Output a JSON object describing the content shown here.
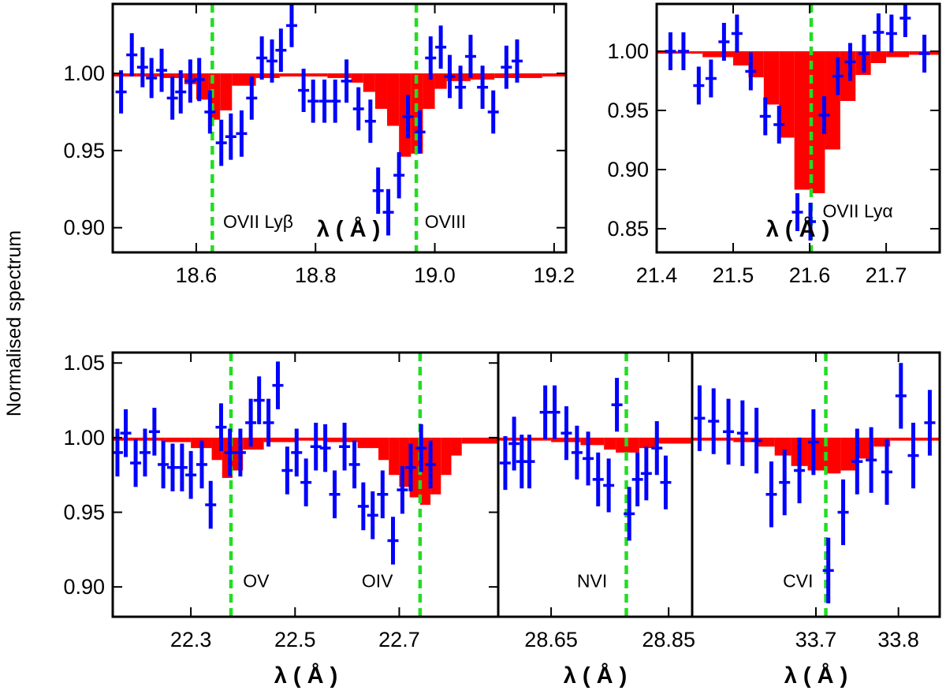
{
  "figure": {
    "ylabel": "Normalised spectrum",
    "colors": {
      "model": "#ff0000",
      "data": "#0000ff",
      "lines": "#22dd22",
      "frame": "#000000"
    }
  },
  "chart_data": [
    {
      "type": "step+errorbar",
      "xlabel": "λ ( Å )",
      "xlim": [
        18.46,
        19.22
      ],
      "ylim": [
        0.884,
        1.045
      ],
      "xticks": [
        "18.6",
        "18.8",
        "19.0",
        "19.2"
      ],
      "yticks": [
        "0.90",
        "0.95",
        "1.00"
      ],
      "line_markers": [
        18.627,
        18.969
      ],
      "annotations": [
        {
          "text": "OVII  Lyβ",
          "x": 18.645,
          "y": 0.904
        },
        {
          "text": "OVIII",
          "x": 18.983,
          "y": 0.904
        }
      ],
      "model": {
        "bins": [
          18.46,
          18.5,
          18.54,
          18.58,
          18.6,
          18.62,
          18.64,
          18.66,
          18.7,
          18.74,
          18.78,
          18.82,
          18.86,
          18.88,
          18.9,
          18.92,
          18.94,
          18.96,
          18.98,
          19.0,
          19.02,
          19.06,
          19.1,
          19.14,
          19.18,
          19.22
        ],
        "values": [
          0.998,
          0.998,
          0.997,
          0.993,
          0.983,
          0.97,
          0.976,
          0.992,
          0.997,
          0.998,
          0.998,
          0.997,
          0.994,
          0.988,
          0.977,
          0.966,
          0.946,
          0.948,
          0.977,
          0.99,
          0.995,
          0.996,
          0.997,
          0.997,
          0.998
        ]
      },
      "data": [
        [
          18.474,
          0.988,
          0.014
        ],
        [
          18.492,
          1.012,
          0.014
        ],
        [
          18.51,
          1.004,
          0.013
        ],
        [
          18.525,
          0.997,
          0.013
        ],
        [
          18.542,
          1.002,
          0.014
        ],
        [
          18.56,
          0.984,
          0.014
        ],
        [
          18.574,
          0.988,
          0.014
        ],
        [
          18.59,
          0.995,
          0.014
        ],
        [
          18.605,
          0.996,
          0.014
        ],
        [
          18.623,
          0.975,
          0.014
        ],
        [
          18.642,
          0.955,
          0.015
        ],
        [
          18.658,
          0.959,
          0.015
        ],
        [
          18.676,
          0.961,
          0.015
        ],
        [
          18.693,
          0.984,
          0.014
        ],
        [
          18.71,
          1.01,
          0.014
        ],
        [
          18.727,
          1.008,
          0.014
        ],
        [
          18.742,
          1.015,
          0.014
        ],
        [
          18.76,
          1.031,
          0.014
        ],
        [
          18.78,
          0.989,
          0.014
        ],
        [
          18.796,
          0.982,
          0.014
        ],
        [
          18.815,
          0.982,
          0.014
        ],
        [
          18.833,
          0.982,
          0.014
        ],
        [
          18.852,
          0.995,
          0.014
        ],
        [
          18.872,
          0.977,
          0.014
        ],
        [
          18.892,
          0.969,
          0.014
        ],
        [
          18.905,
          0.924,
          0.015
        ],
        [
          18.922,
          0.91,
          0.015
        ],
        [
          18.94,
          0.934,
          0.015
        ],
        [
          18.955,
          0.972,
          0.014
        ],
        [
          18.975,
          0.962,
          0.014
        ],
        [
          18.993,
          1.01,
          0.014
        ],
        [
          19.01,
          1.017,
          0.014
        ],
        [
          19.025,
          0.998,
          0.014
        ],
        [
          19.043,
          0.991,
          0.014
        ],
        [
          19.06,
          1.011,
          0.014
        ],
        [
          19.08,
          0.991,
          0.014
        ],
        [
          19.098,
          0.975,
          0.014
        ],
        [
          19.12,
          1.004,
          0.014
        ],
        [
          19.138,
          1.008,
          0.014
        ]
      ]
    },
    {
      "type": "step+errorbar",
      "xlabel": "λ ( Å )",
      "xlim": [
        21.4,
        21.77
      ],
      "ylim": [
        0.83,
        1.04
      ],
      "xticks": [
        "21.4",
        "21.5",
        "21.6",
        "21.7"
      ],
      "yticks": [
        "0.85",
        "0.90",
        "0.95",
        "1.00"
      ],
      "line_markers": [
        21.602
      ],
      "annotations": [
        {
          "text": "OVII  Lyα",
          "x": 21.617,
          "y": 0.865
        }
      ],
      "model": {
        "bins": [
          21.4,
          21.46,
          21.5,
          21.52,
          21.54,
          21.56,
          21.58,
          21.6,
          21.62,
          21.64,
          21.66,
          21.68,
          21.7,
          21.73,
          21.77
        ],
        "values": [
          0.998,
          0.995,
          0.988,
          0.978,
          0.955,
          0.927,
          0.883,
          0.88,
          0.917,
          0.958,
          0.98,
          0.99,
          0.995,
          0.997
        ]
      },
      "data": [
        [
          21.418,
          1.0,
          0.016
        ],
        [
          21.435,
          1.0,
          0.016
        ],
        [
          21.455,
          0.971,
          0.016
        ],
        [
          21.471,
          0.977,
          0.016
        ],
        [
          21.488,
          1.008,
          0.016
        ],
        [
          21.505,
          1.015,
          0.016
        ],
        [
          21.523,
          0.983,
          0.016
        ],
        [
          21.542,
          0.945,
          0.016
        ],
        [
          21.56,
          0.938,
          0.016
        ],
        [
          21.584,
          0.864,
          0.016
        ],
        [
          21.601,
          0.856,
          0.016
        ],
        [
          21.619,
          0.946,
          0.016
        ],
        [
          21.637,
          0.979,
          0.016
        ],
        [
          21.653,
          0.991,
          0.016
        ],
        [
          21.671,
          0.998,
          0.016
        ],
        [
          21.69,
          1.016,
          0.016
        ],
        [
          21.707,
          1.015,
          0.016
        ],
        [
          21.725,
          1.028,
          0.016
        ],
        [
          21.75,
          0.998,
          0.016
        ]
      ]
    },
    {
      "type": "step+errorbar",
      "xlabel": "λ ( Å )",
      "xlim": [
        22.15,
        22.89
      ],
      "ylim": [
        0.88,
        1.057
      ],
      "xticks": [
        "22.3",
        "22.5",
        "22.7"
      ],
      "yticks": [
        "0.90",
        "0.95",
        "1.00",
        "1.05"
      ],
      "line_markers": [
        22.377,
        22.74
      ],
      "annotations": [
        {
          "text": "OV",
          "x": 22.4,
          "y": 0.904
        },
        {
          "text": "OIV",
          "x": 22.628,
          "y": 0.904
        }
      ],
      "model": {
        "bins": [
          22.15,
          22.2,
          22.25,
          22.3,
          22.34,
          22.36,
          22.38,
          22.4,
          22.44,
          22.5,
          22.56,
          22.62,
          22.66,
          22.68,
          22.7,
          22.72,
          22.74,
          22.76,
          22.78,
          22.8,
          22.82,
          22.89
        ],
        "values": [
          0.998,
          0.998,
          0.997,
          0.993,
          0.985,
          0.973,
          0.978,
          0.992,
          0.997,
          0.998,
          0.997,
          0.993,
          0.985,
          0.975,
          0.967,
          0.96,
          0.955,
          0.962,
          0.975,
          0.988,
          0.996
        ]
      },
      "data": [
        [
          22.159,
          0.99,
          0.016
        ],
        [
          22.175,
          1.003,
          0.016
        ],
        [
          22.194,
          0.983,
          0.016
        ],
        [
          22.212,
          0.99,
          0.016
        ],
        [
          22.23,
          1.004,
          0.016
        ],
        [
          22.247,
          0.982,
          0.016
        ],
        [
          22.265,
          0.98,
          0.016
        ],
        [
          22.283,
          0.98,
          0.016
        ],
        [
          22.3,
          0.975,
          0.016
        ],
        [
          22.321,
          0.982,
          0.016
        ],
        [
          22.338,
          0.955,
          0.016
        ],
        [
          22.358,
          1.007,
          0.016
        ],
        [
          22.375,
          0.99,
          0.016
        ],
        [
          22.395,
          0.99,
          0.016
        ],
        [
          22.415,
          1.01,
          0.016
        ],
        [
          22.431,
          1.025,
          0.016
        ],
        [
          22.449,
          1.01,
          0.016
        ],
        [
          22.467,
          1.035,
          0.016
        ],
        [
          22.485,
          0.978,
          0.016
        ],
        [
          22.503,
          0.99,
          0.016
        ],
        [
          22.521,
          0.97,
          0.016
        ],
        [
          22.54,
          0.994,
          0.016
        ],
        [
          22.558,
          0.993,
          0.016
        ],
        [
          22.576,
          0.962,
          0.016
        ],
        [
          22.595,
          0.994,
          0.016
        ],
        [
          22.614,
          0.982,
          0.016
        ],
        [
          22.631,
          0.954,
          0.016
        ],
        [
          22.649,
          0.948,
          0.016
        ],
        [
          22.668,
          0.962,
          0.016
        ],
        [
          22.688,
          0.931,
          0.016
        ],
        [
          22.706,
          0.965,
          0.016
        ],
        [
          22.722,
          0.98,
          0.016
        ],
        [
          22.742,
          0.993,
          0.016
        ],
        [
          22.76,
          0.982,
          0.016
        ]
      ]
    },
    {
      "type": "step+errorbar",
      "xlabel": "λ ( Å )",
      "xlim": [
        28.56,
        28.89
      ],
      "ylim": [
        0.88,
        1.057
      ],
      "xticks": [
        "28.65",
        "28.85"
      ],
      "yticks": [],
      "line_markers": [
        28.778
      ],
      "annotations": [
        {
          "text": "NVI",
          "x": 28.694,
          "y": 0.904
        }
      ],
      "model": {
        "bins": [
          28.56,
          28.65,
          28.7,
          28.74,
          28.76,
          28.8,
          28.83,
          28.89
        ],
        "values": [
          0.998,
          0.997,
          0.995,
          0.992,
          0.99,
          0.993,
          0.996
        ]
      },
      "data": [
        [
          28.572,
          0.983,
          0.018
        ],
        [
          28.587,
          0.996,
          0.018
        ],
        [
          28.6,
          0.984,
          0.018
        ],
        [
          28.613,
          0.984,
          0.018
        ],
        [
          28.64,
          1.017,
          0.018
        ],
        [
          28.656,
          1.017,
          0.018
        ],
        [
          28.676,
          1.003,
          0.018
        ],
        [
          28.694,
          0.99,
          0.018
        ],
        [
          28.713,
          0.986,
          0.018
        ],
        [
          28.73,
          0.972,
          0.018
        ],
        [
          28.748,
          0.968,
          0.018
        ],
        [
          28.762,
          1.022,
          0.018
        ],
        [
          28.783,
          0.949,
          0.018
        ],
        [
          28.797,
          0.972,
          0.018
        ],
        [
          28.812,
          0.976,
          0.018
        ],
        [
          28.83,
          0.993,
          0.018
        ],
        [
          28.845,
          0.97,
          0.018
        ]
      ]
    },
    {
      "type": "step+errorbar",
      "xlabel": "λ ( Å )",
      "xlim": [
        33.55,
        33.85
      ],
      "ylim": [
        0.88,
        1.057
      ],
      "xticks": [
        "33.7",
        "33.8"
      ],
      "yticks": [],
      "line_markers": [
        33.712
      ],
      "annotations": [
        {
          "text": "CVI",
          "x": 33.66,
          "y": 0.904
        }
      ],
      "model": {
        "bins": [
          33.55,
          33.6,
          33.63,
          33.65,
          33.67,
          33.69,
          33.71,
          33.73,
          33.75,
          33.77,
          33.79,
          33.85
        ],
        "values": [
          0.998,
          0.997,
          0.994,
          0.988,
          0.981,
          0.978,
          0.976,
          0.978,
          0.986,
          0.994,
          0.998
        ]
      },
      "data": [
        [
          33.559,
          1.013,
          0.022
        ],
        [
          33.576,
          1.011,
          0.022
        ],
        [
          33.594,
          1.004,
          0.022
        ],
        [
          33.611,
          1.003,
          0.022
        ],
        [
          33.628,
          0.998,
          0.022
        ],
        [
          33.646,
          0.962,
          0.022
        ],
        [
          33.662,
          0.97,
          0.022
        ],
        [
          33.68,
          0.978,
          0.022
        ],
        [
          33.697,
          0.997,
          0.022
        ],
        [
          33.715,
          0.911,
          0.022
        ],
        [
          33.733,
          0.95,
          0.022
        ],
        [
          33.75,
          0.984,
          0.022
        ],
        [
          33.767,
          0.985,
          0.022
        ],
        [
          33.786,
          0.977,
          0.022
        ],
        [
          33.803,
          1.028,
          0.022
        ],
        [
          33.818,
          0.988,
          0.022
        ],
        [
          33.838,
          1.01,
          0.022
        ]
      ]
    }
  ]
}
